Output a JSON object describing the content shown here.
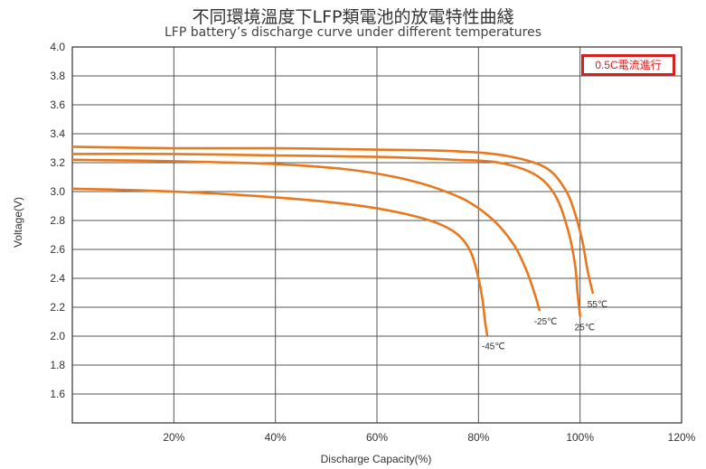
{
  "title_cn": "不同環境溫度下LFP類電池的放電特性曲綫",
  "title_en": "LFP battery’s discharge curve under different temperatures",
  "badge": "0.5C電流進行",
  "chart_data": {
    "type": "line",
    "title": "不同環境溫度下LFP類電池的放電特性曲綫",
    "subtitle": "LFP battery’s discharge curve under different temperatures",
    "xlabel": "Discharge Capacity(%)",
    "ylabel": "Voltage(V)",
    "xlim": [
      0,
      120
    ],
    "ylim": [
      1.4,
      4.0
    ],
    "x_ticks": [
      20,
      40,
      60,
      80,
      100,
      120
    ],
    "x_tick_labels": [
      "20%",
      "40%",
      "60%",
      "80%",
      "100%",
      "120%"
    ],
    "y_ticks": [
      1.6,
      1.8,
      2.0,
      2.2,
      2.4,
      2.6,
      2.8,
      3.0,
      3.2,
      3.4,
      3.6,
      3.8,
      4.0
    ],
    "y_tick_labels": [
      "1.6",
      "1.8",
      "2.0",
      "2.2",
      "2.4",
      "2.6",
      "2.8",
      "3.0",
      "3.2",
      "3.4",
      "3.6",
      "3.8",
      "4.0"
    ],
    "grid": true,
    "series": [
      {
        "name": "55℃",
        "x": [
          0,
          20,
          40,
          60,
          75,
          85,
          93,
          97,
          99,
          100.5,
          101.5,
          102.5
        ],
        "y": [
          3.31,
          3.3,
          3.3,
          3.29,
          3.28,
          3.25,
          3.17,
          3.02,
          2.85,
          2.65,
          2.45,
          2.3
        ]
      },
      {
        "name": "25℃",
        "x": [
          0,
          20,
          40,
          60,
          75,
          84,
          91,
          95,
          97.5,
          99,
          99.5,
          100
        ],
        "y": [
          3.26,
          3.26,
          3.25,
          3.24,
          3.22,
          3.2,
          3.12,
          2.98,
          2.75,
          2.5,
          2.3,
          2.14
        ]
      },
      {
        "name": "-25℃",
        "x": [
          0,
          20,
          40,
          55,
          65,
          72,
          78,
          83,
          87,
          89.5,
          91,
          92
        ],
        "y": [
          3.22,
          3.21,
          3.19,
          3.15,
          3.09,
          3.02,
          2.93,
          2.8,
          2.63,
          2.45,
          2.3,
          2.18
        ]
      },
      {
        "name": "-45℃",
        "x": [
          0,
          20,
          40,
          55,
          65,
          72,
          76,
          78.5,
          80,
          80.8,
          81.3,
          81.7
        ],
        "y": [
          3.02,
          3.0,
          2.96,
          2.91,
          2.85,
          2.78,
          2.7,
          2.58,
          2.4,
          2.25,
          2.1,
          2.01
        ]
      }
    ]
  }
}
